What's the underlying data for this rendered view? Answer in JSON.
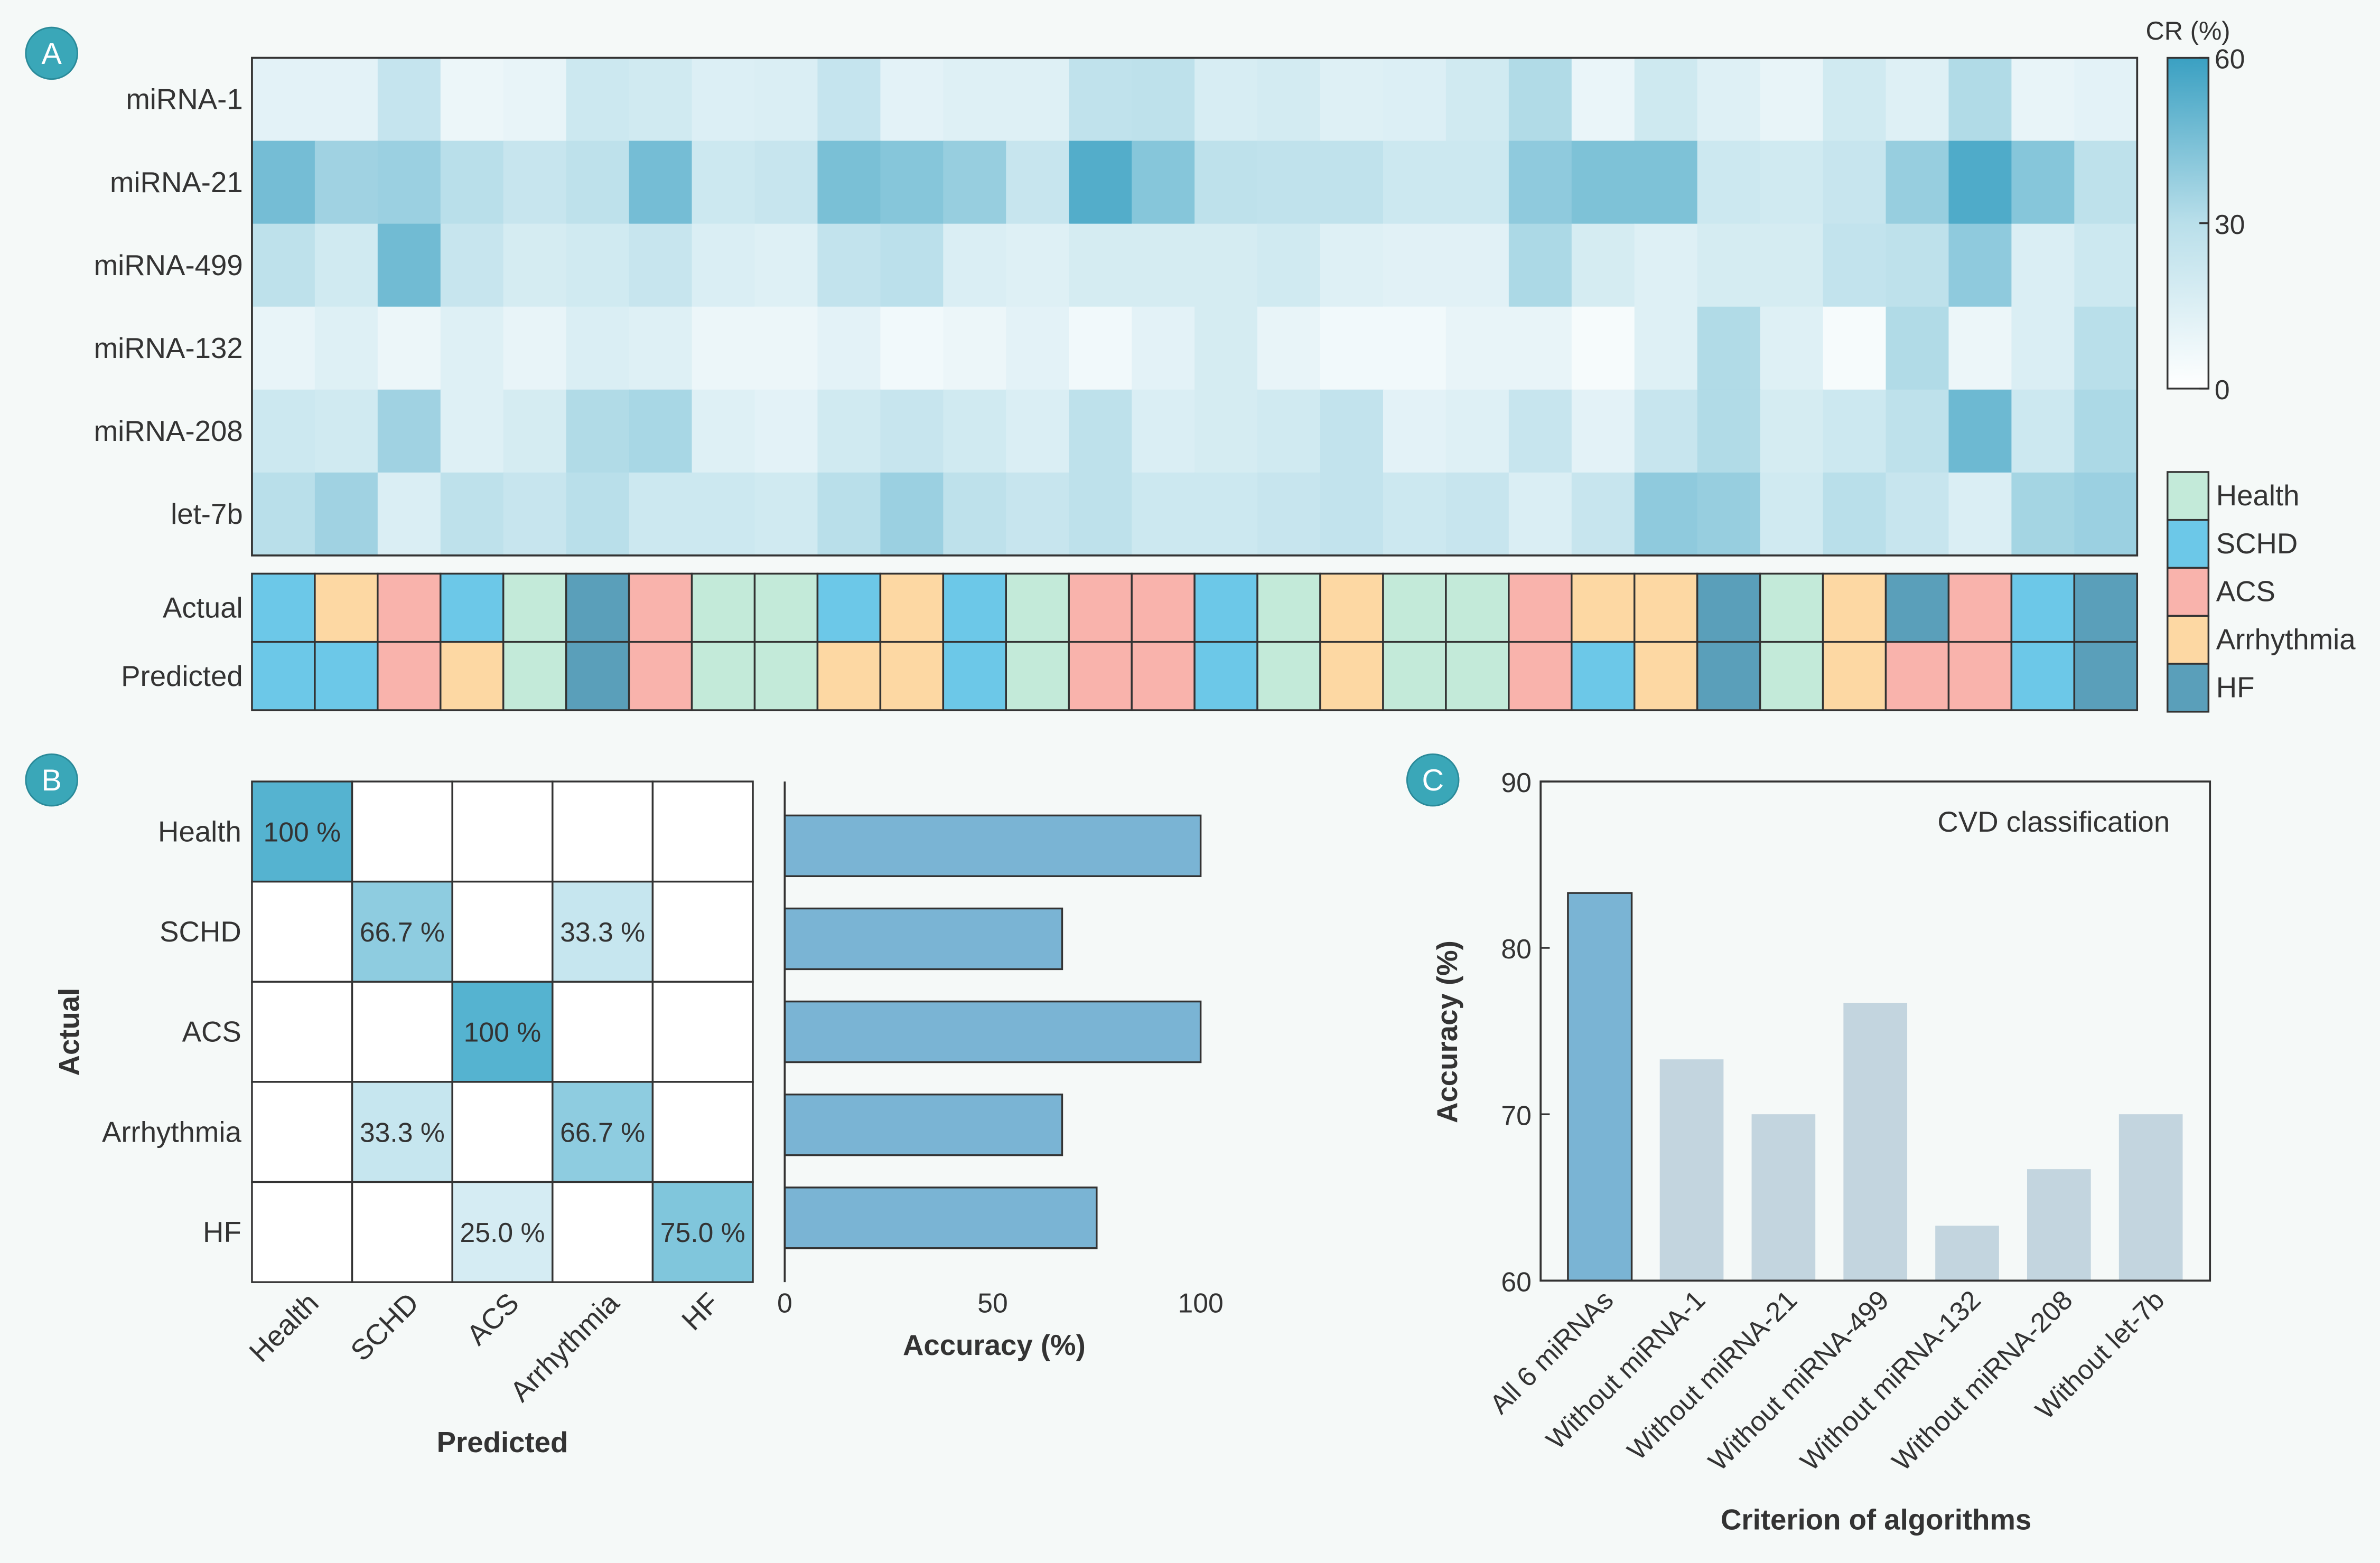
{
  "figure": {
    "background": "#f5f9f8",
    "text_color": "#333333",
    "panel_badge_color": "#3aa7b8"
  },
  "panels": {
    "a": {
      "label": "A"
    },
    "b": {
      "label": "B"
    },
    "c": {
      "label": "C"
    }
  },
  "chart_data": [
    {
      "type": "heatmap",
      "rows": [
        "miRNA-1",
        "miRNA-21",
        "miRNA-499",
        "miRNA-132",
        "miRNA-208",
        "let-7b"
      ],
      "values": [
        [
          12,
          12,
          25,
          8,
          10,
          22,
          20,
          15,
          16,
          25,
          12,
          14,
          14,
          27,
          28,
          17,
          19,
          14,
          15,
          20,
          32,
          9,
          21,
          14,
          10,
          20,
          14,
          32,
          10,
          12
        ],
        [
          46,
          36,
          37,
          30,
          24,
          28,
          46,
          22,
          24,
          45,
          42,
          38,
          24,
          54,
          42,
          28,
          27,
          27,
          22,
          22,
          40,
          44,
          44,
          22,
          20,
          24,
          38,
          55,
          42,
          28
        ],
        [
          28,
          20,
          47,
          24,
          18,
          20,
          24,
          16,
          14,
          26,
          29,
          16,
          14,
          18,
          18,
          18,
          20,
          14,
          13,
          13,
          33,
          18,
          14,
          18,
          18,
          26,
          28,
          40,
          16,
          22
        ],
        [
          10,
          14,
          8,
          14,
          10,
          16,
          14,
          8,
          8,
          12,
          6,
          8,
          12,
          6,
          12,
          18,
          10,
          6,
          6,
          10,
          10,
          4,
          14,
          32,
          14,
          4,
          32,
          8,
          16,
          30
        ],
        [
          22,
          20,
          36,
          14,
          18,
          32,
          34,
          14,
          12,
          20,
          24,
          20,
          16,
          28,
          16,
          18,
          20,
          26,
          12,
          14,
          24,
          12,
          24,
          32,
          18,
          22,
          28,
          48,
          22,
          33
        ],
        [
          30,
          36,
          16,
          28,
          24,
          30,
          22,
          22,
          20,
          30,
          37,
          28,
          24,
          28,
          22,
          22,
          24,
          26,
          22,
          24,
          16,
          24,
          40,
          38,
          20,
          30,
          24,
          16,
          35,
          37
        ]
      ],
      "colorbar": {
        "title": "CR (%)",
        "range": [
          0,
          60
        ],
        "ticks": [
          0,
          30,
          60
        ],
        "colors": [
          "#ffffff",
          "#b9dfea",
          "#3aa0c2"
        ]
      },
      "annotation_rows": {
        "labels": [
          "Actual",
          "Predicted"
        ],
        "actual": [
          "SCHD",
          "Arrhythmia",
          "ACS",
          "SCHD",
          "Health",
          "HF",
          "ACS",
          "Health",
          "Health",
          "SCHD",
          "Arrhythmia",
          "SCHD",
          "Health",
          "ACS",
          "ACS",
          "SCHD",
          "Health",
          "Arrhythmia",
          "Health",
          "Health",
          "ACS",
          "Arrhythmia",
          "Arrhythmia",
          "HF",
          "Health",
          "Arrhythmia",
          "HF",
          "ACS",
          "SCHD",
          "HF"
        ],
        "predicted": [
          "SCHD",
          "SCHD",
          "ACS",
          "Arrhythmia",
          "Health",
          "HF",
          "ACS",
          "Health",
          "Health",
          "Arrhythmia",
          "Arrhythmia",
          "SCHD",
          "Health",
          "ACS",
          "ACS",
          "SCHD",
          "Health",
          "Arrhythmia",
          "Health",
          "Health",
          "ACS",
          "SCHD",
          "Arrhythmia",
          "HF",
          "Health",
          "Arrhythmia",
          "ACS",
          "ACS",
          "SCHD",
          "HF"
        ]
      },
      "legend": {
        "position": "right",
        "entries": [
          "Health",
          "SCHD",
          "ACS",
          "Arrhythmia",
          "HF"
        ],
        "colors": [
          "#c3ead9",
          "#6cc8e8",
          "#f9b3ac",
          "#fdd8a3",
          "#5a9fba"
        ]
      }
    },
    {
      "type": "heatmap",
      "xlabel": "Predicted",
      "ylabel": "Actual",
      "rows": [
        "Health",
        "SCHD",
        "ACS",
        "Arrhythmia",
        "HF"
      ],
      "columns": [
        "Health",
        "SCHD",
        "ACS",
        "Arrhythmia",
        "HF"
      ],
      "values": [
        [
          100,
          0,
          0,
          0,
          0
        ],
        [
          0,
          66.7,
          0,
          33.3,
          0
        ],
        [
          0,
          0,
          100,
          0,
          0
        ],
        [
          0,
          33.3,
          0,
          66.7,
          0
        ],
        [
          0,
          0,
          25.0,
          0,
          75.0
        ]
      ],
      "labels": [
        [
          "100 %",
          null,
          null,
          null,
          null
        ],
        [
          null,
          "66.7 %",
          null,
          "33.3 %",
          null
        ],
        [
          null,
          null,
          "100 %",
          null,
          null
        ],
        [
          null,
          "33.3 %",
          null,
          "66.7 %",
          null
        ],
        [
          null,
          null,
          "25.0 %",
          null,
          "75.0 %"
        ]
      ],
      "colormap": [
        "#ffffff",
        "#55b3d0"
      ],
      "accuracy_bars": {
        "type": "bar",
        "orientation": "horizontal",
        "values": [
          100,
          66.7,
          100,
          66.7,
          75.0
        ],
        "xlabel": "Accuracy (%)",
        "xlim": [
          0,
          100
        ],
        "xticks": [
          0,
          50,
          100
        ],
        "bar_color": "#7ab4d4"
      }
    },
    {
      "type": "bar",
      "title": "CVD classification",
      "categories": [
        "All 6 miRNAs",
        "Without miRNA-1",
        "Without miRNA-21",
        "Without miRNA-499",
        "Without miRNA-132",
        "Without miRNA-208",
        "Without let-7b"
      ],
      "values": [
        83.3,
        73.3,
        70.0,
        76.7,
        63.3,
        66.7,
        70.0
      ],
      "xlabel": "Criterion of algorithms",
      "ylabel": "Accuracy (%)",
      "ylim": [
        60,
        90
      ],
      "yticks": [
        60,
        70,
        80,
        90
      ],
      "grid": false,
      "bar_color": "#c3d5df",
      "highlight_color": "#7ab4d4"
    }
  ]
}
